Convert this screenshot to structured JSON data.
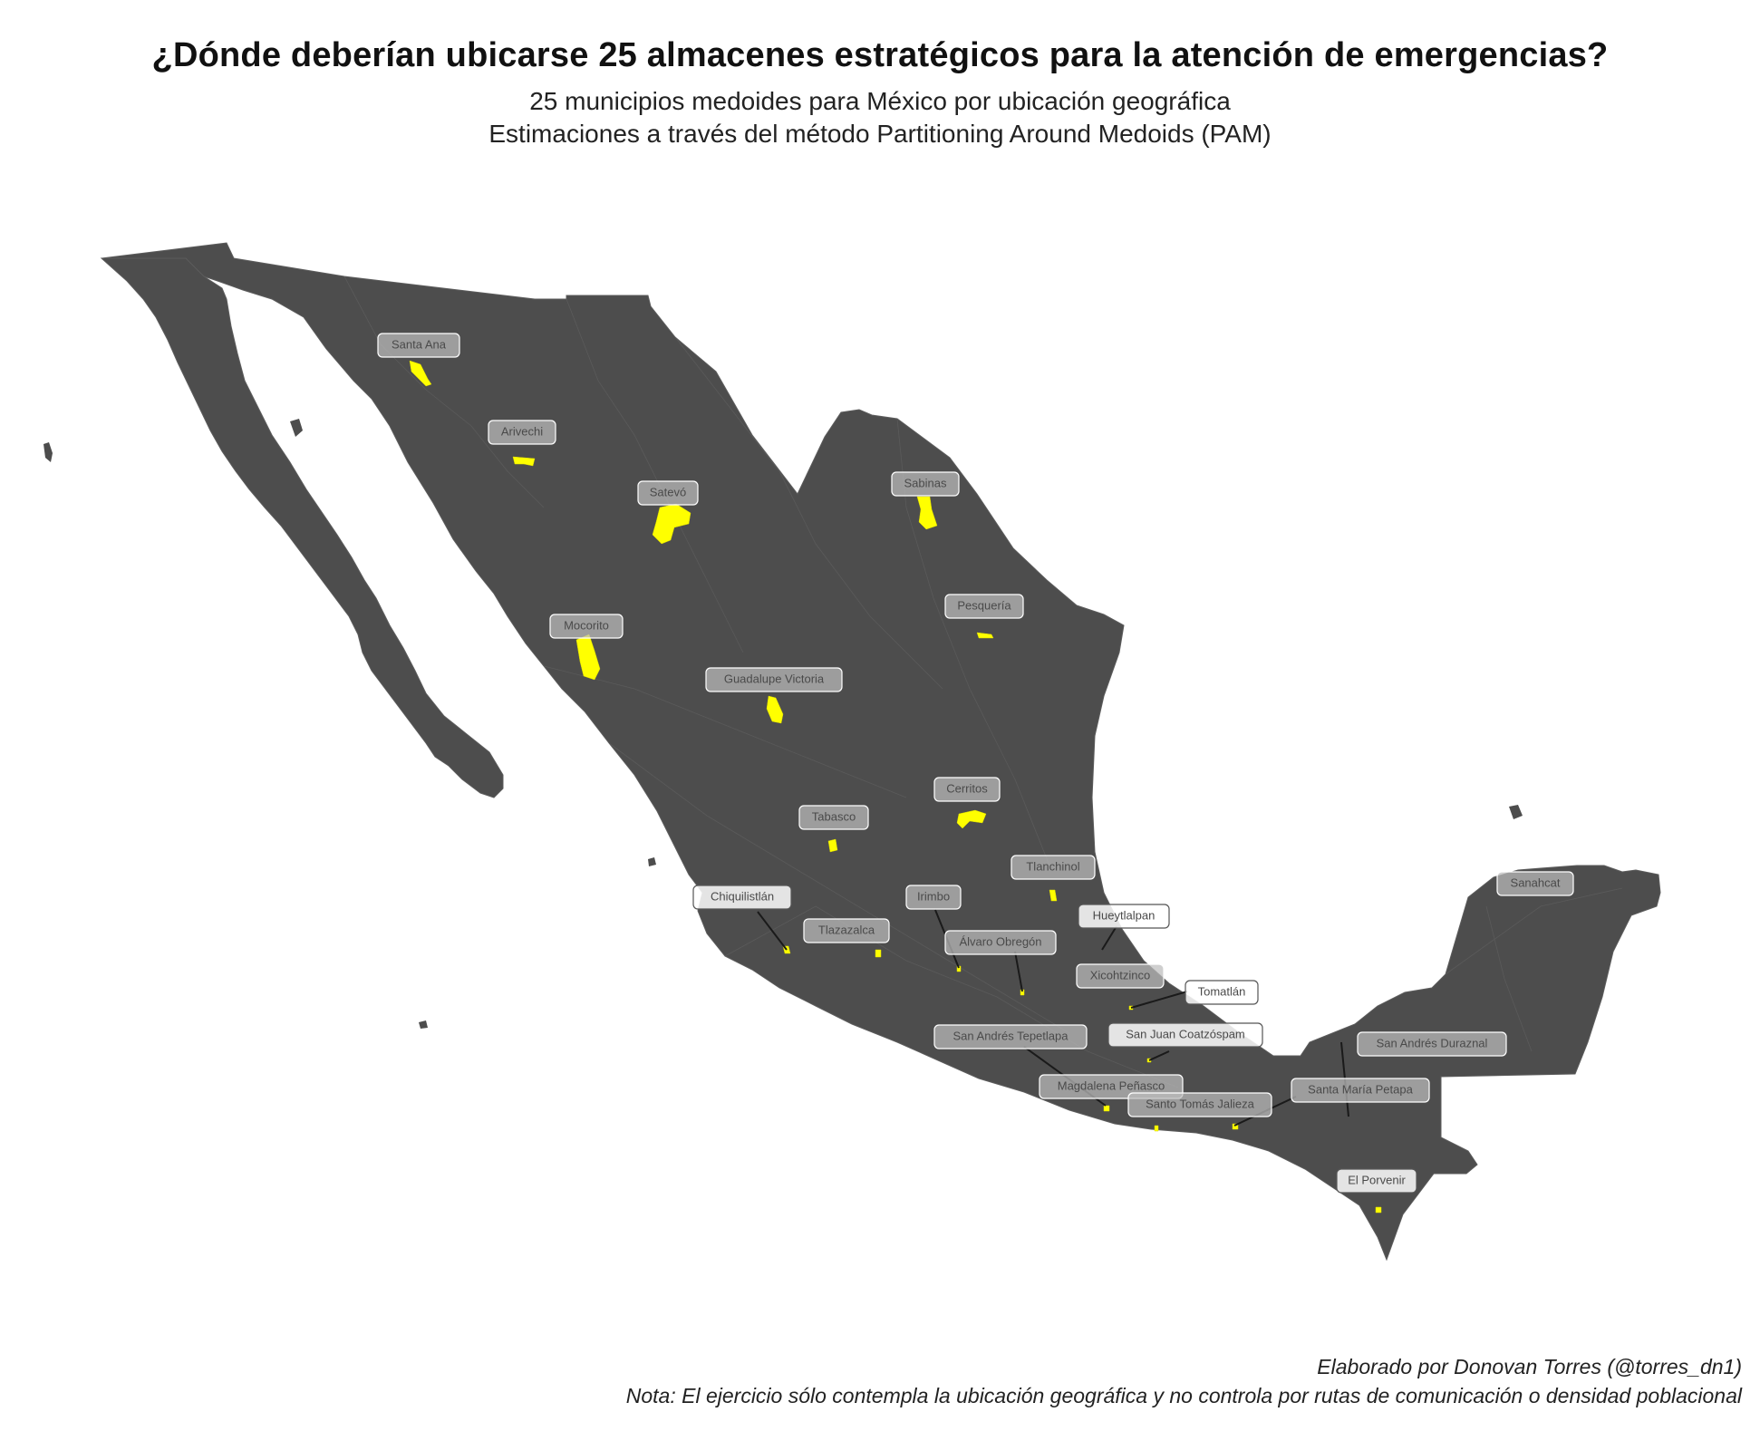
{
  "title": "¿Dónde deberían ubicarse 25 almacenes estratégicos para la atención de emergencias?",
  "subtitle_line1": "25 municipios medoides para México por ubicación geográfica",
  "subtitle_line2": "Estimaciones a través del método Partitioning Around Medoids (PAM)",
  "caption_line1": "Elaborado por Donovan Torres (@torres_dn1)",
  "caption_line2": "Nota: El ejercicio sólo contempla la ubicación geográfica y no controla por rutas de comunicación o densidad poblacional",
  "colors": {
    "land": "#4d4d4d",
    "borders": "#5c5c5c",
    "highlight": "#ffff00",
    "label_fill": "#bdbdbd"
  },
  "municipalities": [
    "Santa Ana",
    "Arivechi",
    "Satevó",
    "Sabinas",
    "Pesquería",
    "Mocorito",
    "Guadalupe Victoria",
    "Cerritos",
    "Tabasco",
    "Tlanchinol",
    "Chiquilistlán",
    "Irimbo",
    "Tlazazalca",
    "Hueytlalpan",
    "Álvaro Obregón",
    "Xicohtzinco",
    "Tomatlán",
    "San Andrés Tepetlapa",
    "San Juan Coatzóspam",
    "San Andrés Duraznal",
    "Magdalena Peñasco",
    "Santa María Petapa",
    "Santo Tomás Jalieza",
    "El Porvenir",
    "Sanahcat"
  ]
}
